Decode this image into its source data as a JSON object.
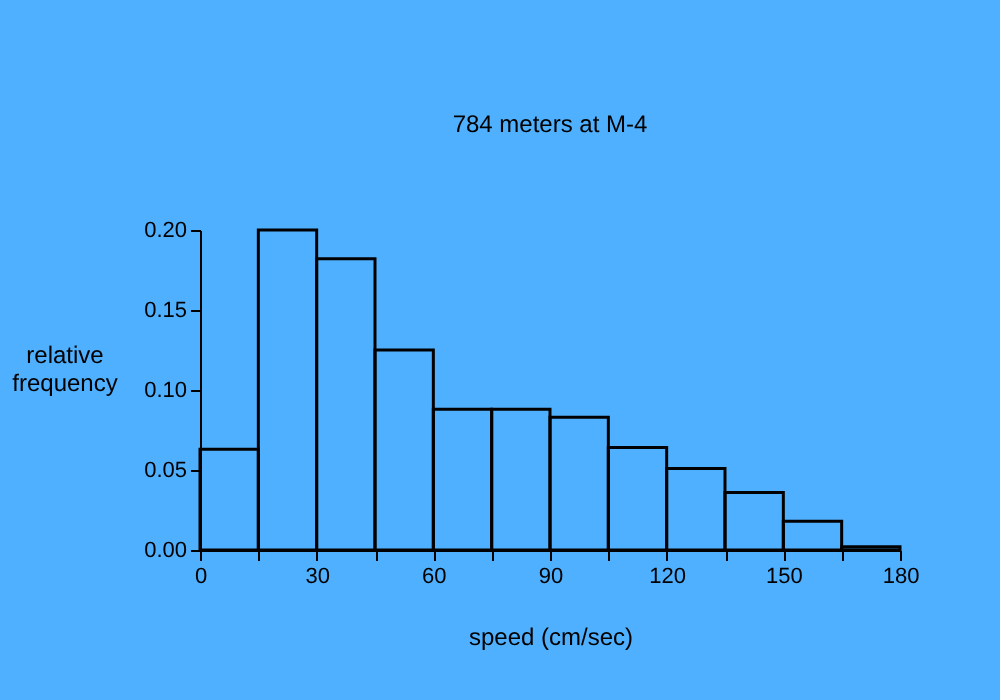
{
  "chart_data": {
    "type": "histogram",
    "title": "784 meters at M-4",
    "xlabel": "speed (cm/sec)",
    "ylabel": "relative frequency",
    "bins": [
      0,
      15,
      30,
      45,
      60,
      75,
      90,
      105,
      120,
      135,
      150,
      165,
      180
    ],
    "values": [
      0.063,
      0.2,
      0.182,
      0.125,
      0.088,
      0.088,
      0.083,
      0.064,
      0.051,
      0.036,
      0.018,
      0.002
    ],
    "xlim": [
      0,
      180
    ],
    "xticks": [
      0,
      {
        "value": 15,
        "label": null
      },
      30,
      {
        "value": 45,
        "label": null
      },
      60,
      {
        "value": 75,
        "label": null
      },
      90,
      {
        "value": 105,
        "label": null
      },
      120,
      {
        "value": 135,
        "label": null
      },
      150,
      {
        "value": 165,
        "label": null
      },
      180
    ],
    "ylim": [
      0,
      0.2
    ],
    "yticks": [
      {
        "value": 0,
        "label": "0.00"
      },
      {
        "value": 0.05,
        "label": "0.05"
      },
      {
        "value": 0.1,
        "label": "0.10"
      },
      {
        "value": 0.15,
        "label": "0.15"
      },
      {
        "value": 0.2,
        "label": "0.20"
      }
    ],
    "grid": false
  }
}
